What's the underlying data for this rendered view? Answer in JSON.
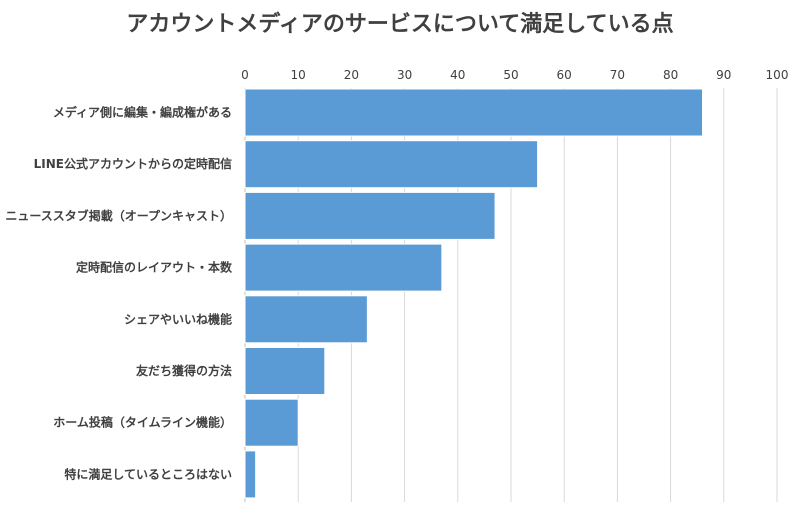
{
  "chart_data": {
    "type": "bar",
    "orientation": "horizontal",
    "title": "アカウントメディアのサービスについて満足している点",
    "categories": [
      "メディア側に編集・編成権がある",
      "LINE公式アカウントからの定時配信",
      "ニューススタブ掲載（オープンキャスト）",
      "定時配信のレイアウト・本数",
      "シェアやいいね機能",
      "友だち獲得の方法",
      "ホーム投稿（タイムライン機能）",
      "特に満足しているところはない"
    ],
    "values": [
      86,
      55,
      47,
      37,
      23,
      15,
      10,
      2
    ],
    "xlim": [
      0,
      100
    ],
    "xticks": [
      0,
      10,
      20,
      30,
      40,
      50,
      60,
      70,
      80,
      90,
      100
    ],
    "x_axis_position": "top",
    "grid": "vertical",
    "legend": "none",
    "xlabel": "",
    "ylabel": "",
    "colors": {
      "bar": "#5b9bd5",
      "text": "#404040",
      "grid": "#d9d9d9"
    }
  }
}
